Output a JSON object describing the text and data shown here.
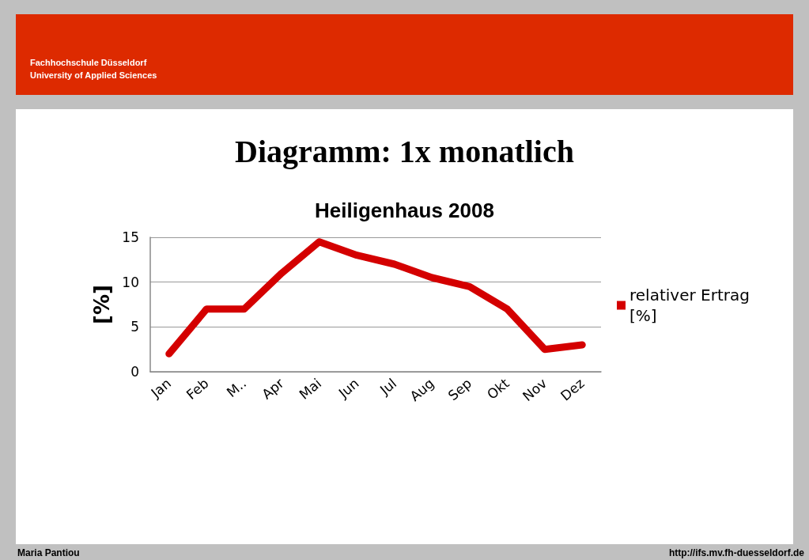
{
  "chart_data": {
    "type": "line",
    "title": "Diagramm: 1x monatlich",
    "subtitle": "Heiligenhaus 2008",
    "ylabel": "[%]",
    "categories": [
      "Jan",
      "Feb",
      "M..",
      "Apr",
      "Mai",
      "Jun",
      "Jul",
      "Aug",
      "Sep",
      "Okt",
      "Nov",
      "Dez"
    ],
    "series": [
      {
        "name": "relativer Ertrag [%]",
        "color": "#d40000",
        "values": [
          2,
          7,
          7,
          11,
          14.5,
          13,
          12,
          10.5,
          9.5,
          7,
          2.5,
          3
        ]
      }
    ],
    "ylim": [
      0,
      15
    ],
    "yticks": [
      0,
      5,
      10,
      15
    ],
    "grid": "y",
    "legend": "right",
    "marker": "none",
    "line_style": "solid",
    "annotations": [
      "Fachhochschule Düsseldorf",
      "University of Applied Sciences",
      "Maria Pantiou",
      "http://ifs.mv.fh-duesseldorf.de"
    ]
  }
}
